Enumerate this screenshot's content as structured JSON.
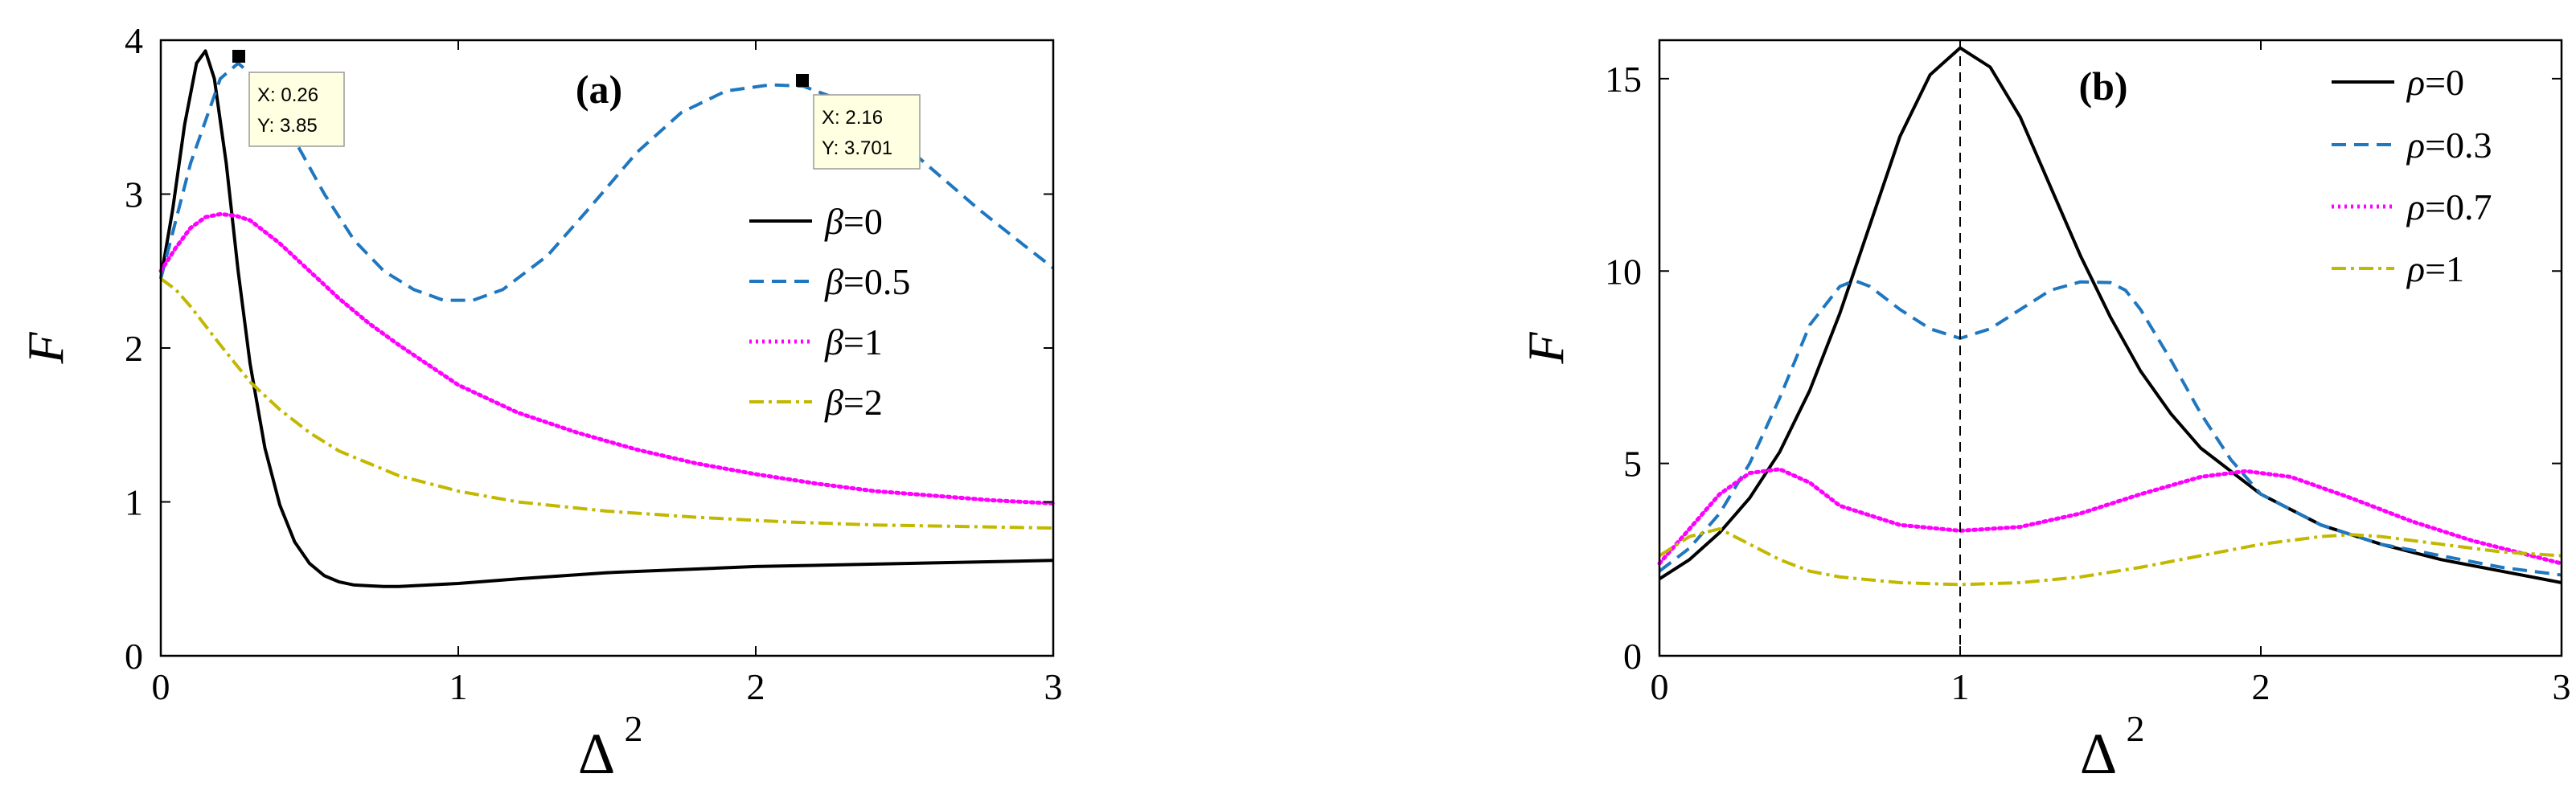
{
  "colors": {
    "black": "#000000",
    "blue": "#1f77c0",
    "magenta": "#ff00ff",
    "olive": "#c2b800",
    "tooltip_bg": "#ffffe1"
  },
  "chart_data": [
    {
      "type": "line",
      "panel_label": "(a)",
      "xlabel_base": "Δ",
      "xlabel_sup": "2",
      "ylabel": "F",
      "xlim": [
        0,
        3
      ],
      "ylim": [
        0,
        4
      ],
      "xticks": [
        0,
        1,
        2,
        3
      ],
      "yticks": [
        0,
        1,
        2,
        3,
        4
      ],
      "grid": false,
      "legend_position": "right",
      "series": [
        {
          "name_sym": "β",
          "name_val": "=0",
          "style": "solid",
          "color": "#000000",
          "x": [
            0,
            0.04,
            0.08,
            0.12,
            0.15,
            0.18,
            0.22,
            0.26,
            0.3,
            0.35,
            0.4,
            0.45,
            0.5,
            0.55,
            0.6,
            0.65,
            0.7,
            0.75,
            0.8,
            0.9,
            1.0,
            1.2,
            1.5,
            2.0,
            2.5,
            3.0
          ],
          "y": [
            2.45,
            2.9,
            3.45,
            3.85,
            3.93,
            3.75,
            3.2,
            2.5,
            1.9,
            1.35,
            0.98,
            0.74,
            0.6,
            0.52,
            0.48,
            0.46,
            0.455,
            0.45,
            0.45,
            0.46,
            0.47,
            0.5,
            0.54,
            0.58,
            0.6,
            0.62
          ]
        },
        {
          "name_sym": "β",
          "name_val": "=0.5",
          "style": "dashed",
          "color": "#1f77c0",
          "x": [
            0,
            0.1,
            0.2,
            0.26,
            0.35,
            0.45,
            0.55,
            0.65,
            0.75,
            0.85,
            0.95,
            1.05,
            1.15,
            1.3,
            1.45,
            1.6,
            1.75,
            1.9,
            2.05,
            2.16,
            2.3,
            2.45,
            2.6,
            2.75,
            2.9,
            3.0
          ],
          "y": [
            2.45,
            3.2,
            3.75,
            3.85,
            3.7,
            3.35,
            3.0,
            2.7,
            2.5,
            2.38,
            2.31,
            2.31,
            2.38,
            2.6,
            2.93,
            3.27,
            3.53,
            3.67,
            3.71,
            3.701,
            3.6,
            3.4,
            3.15,
            2.9,
            2.67,
            2.52
          ]
        },
        {
          "name_sym": "β",
          "name_val": "=1",
          "style": "dotted",
          "color": "#ff00ff",
          "x": [
            0,
            0.05,
            0.1,
            0.15,
            0.2,
            0.25,
            0.3,
            0.4,
            0.5,
            0.6,
            0.7,
            0.8,
            1.0,
            1.2,
            1.4,
            1.6,
            1.8,
            2.0,
            2.2,
            2.4,
            2.6,
            2.8,
            3.0
          ],
          "y": [
            2.5,
            2.65,
            2.78,
            2.85,
            2.87,
            2.86,
            2.83,
            2.68,
            2.5,
            2.32,
            2.16,
            2.02,
            1.76,
            1.58,
            1.45,
            1.34,
            1.25,
            1.18,
            1.12,
            1.07,
            1.04,
            1.01,
            0.99
          ]
        },
        {
          "name_sym": "β",
          "name_val": "=2",
          "style": "dashdot",
          "color": "#c2b800",
          "x": [
            0,
            0.05,
            0.1,
            0.2,
            0.3,
            0.4,
            0.5,
            0.6,
            0.8,
            1.0,
            1.2,
            1.5,
            1.8,
            2.1,
            2.4,
            2.7,
            3.0
          ],
          "y": [
            2.45,
            2.38,
            2.27,
            2.02,
            1.78,
            1.6,
            1.45,
            1.33,
            1.17,
            1.07,
            1.0,
            0.94,
            0.9,
            0.87,
            0.85,
            0.84,
            0.83
          ]
        }
      ],
      "annotations": [
        {
          "x": 0.26,
          "y": 3.85,
          "line1": "X: 0.26",
          "line2": "Y: 3.85"
        },
        {
          "x": 2.16,
          "y": 3.701,
          "line1": "X: 2.16",
          "line2": "Y: 3.701"
        }
      ]
    },
    {
      "type": "line",
      "panel_label": "(b)",
      "xlabel_base": "Δ",
      "xlabel_sup": "2",
      "ylabel": "F",
      "xlim": [
        0,
        3
      ],
      "ylim": [
        0,
        16
      ],
      "xticks": [
        0,
        1,
        2,
        3
      ],
      "yticks": [
        0,
        5,
        10,
        15
      ],
      "grid": false,
      "legend_position": "top-right",
      "vline_x": 1,
      "series": [
        {
          "name_sym": "ρ",
          "name_val": "=0",
          "style": "solid",
          "color": "#000000",
          "x": [
            0,
            0.1,
            0.2,
            0.3,
            0.4,
            0.5,
            0.6,
            0.7,
            0.8,
            0.9,
            1.0,
            1.1,
            1.2,
            1.3,
            1.4,
            1.5,
            1.6,
            1.7,
            1.8,
            2.0,
            2.2,
            2.4,
            2.6,
            2.8,
            3.0
          ],
          "y": [
            2.0,
            2.5,
            3.2,
            4.1,
            5.3,
            6.9,
            8.9,
            11.2,
            13.5,
            15.1,
            15.8,
            15.3,
            14.0,
            12.2,
            10.4,
            8.8,
            7.4,
            6.3,
            5.4,
            4.2,
            3.4,
            2.9,
            2.5,
            2.2,
            1.9
          ]
        },
        {
          "name_sym": "ρ",
          "name_val": "=0.3",
          "style": "dashed",
          "color": "#1f77c0",
          "x": [
            0,
            0.1,
            0.2,
            0.3,
            0.4,
            0.5,
            0.6,
            0.65,
            0.7,
            0.8,
            0.9,
            1.0,
            1.1,
            1.2,
            1.3,
            1.4,
            1.5,
            1.55,
            1.6,
            1.7,
            1.8,
            1.9,
            2.0,
            2.2,
            2.4,
            2.6,
            2.8,
            3.0
          ],
          "y": [
            2.2,
            2.8,
            3.7,
            5.0,
            6.7,
            8.6,
            9.6,
            9.75,
            9.6,
            9.0,
            8.5,
            8.25,
            8.5,
            9.0,
            9.5,
            9.72,
            9.7,
            9.5,
            9.0,
            7.7,
            6.3,
            5.1,
            4.2,
            3.4,
            2.9,
            2.6,
            2.3,
            2.1
          ]
        },
        {
          "name_sym": "ρ",
          "name_val": "=0.7",
          "style": "dotted",
          "color": "#ff00ff",
          "x": [
            0,
            0.1,
            0.2,
            0.3,
            0.4,
            0.5,
            0.6,
            0.8,
            1.0,
            1.2,
            1.4,
            1.6,
            1.8,
            1.95,
            2.1,
            2.3,
            2.5,
            2.7,
            3.0
          ],
          "y": [
            2.4,
            3.3,
            4.2,
            4.75,
            4.85,
            4.5,
            3.9,
            3.4,
            3.25,
            3.35,
            3.7,
            4.2,
            4.65,
            4.8,
            4.65,
            4.1,
            3.5,
            3.0,
            2.4
          ]
        },
        {
          "name_sym": "ρ",
          "name_val": "=1",
          "style": "dashdot",
          "color": "#c2b800",
          "x": [
            0,
            0.1,
            0.2,
            0.3,
            0.4,
            0.5,
            0.6,
            0.8,
            1.0,
            1.2,
            1.4,
            1.6,
            1.8,
            2.0,
            2.2,
            2.3,
            2.4,
            2.6,
            2.8,
            3.0
          ],
          "y": [
            2.6,
            3.1,
            3.3,
            2.9,
            2.5,
            2.2,
            2.05,
            1.9,
            1.85,
            1.9,
            2.05,
            2.3,
            2.6,
            2.9,
            3.1,
            3.15,
            3.1,
            2.9,
            2.7,
            2.6
          ]
        }
      ]
    }
  ]
}
